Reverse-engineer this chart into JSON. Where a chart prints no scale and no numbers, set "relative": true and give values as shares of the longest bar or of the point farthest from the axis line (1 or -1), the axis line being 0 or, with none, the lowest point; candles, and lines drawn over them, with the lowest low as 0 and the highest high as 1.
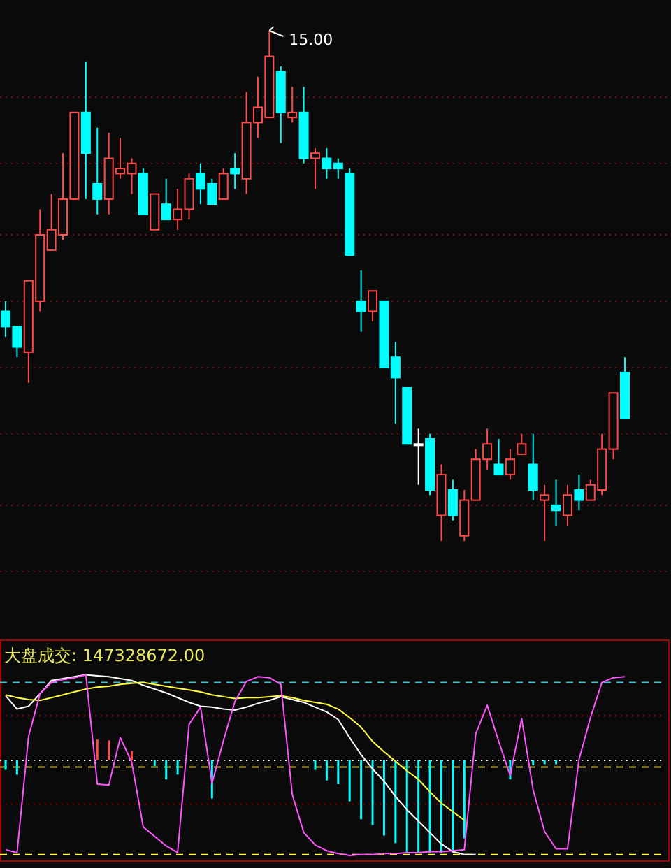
{
  "chart_data": [
    {
      "type": "candlestick",
      "relative": true,
      "ref_lines": [
        {
          "axis": "y",
          "value": 0.87,
          "color": "#6a1010",
          "line_style": "dotted"
        },
        {
          "axis": "y",
          "value": 0.74,
          "color": "#6a1010",
          "line_style": "dotted"
        },
        {
          "axis": "y",
          "value": 0.6,
          "color": "#6a1010",
          "line_style": "dotted"
        },
        {
          "axis": "y",
          "value": 0.47,
          "color": "#6a1010",
          "line_style": "dotted"
        },
        {
          "axis": "y",
          "value": 0.34,
          "color": "#6a1010",
          "line_style": "dotted"
        },
        {
          "axis": "y",
          "value": 0.21,
          "color": "#6a1010",
          "line_style": "dotted"
        },
        {
          "axis": "y",
          "value": 0.07,
          "color": "#6a1010",
          "line_style": "dotted"
        },
        {
          "axis": "y",
          "value": -0.06,
          "color": "#6a1010",
          "line_style": "dotted"
        }
      ],
      "categories": [
        null,
        null,
        null,
        null,
        null,
        null,
        null,
        null,
        null,
        null,
        null,
        null,
        null,
        null,
        null,
        null,
        null,
        null,
        null,
        null,
        null,
        null,
        null,
        null,
        null,
        null,
        null,
        null,
        null,
        null,
        null,
        null,
        null,
        null,
        null,
        null,
        null,
        null,
        null,
        null,
        null,
        null,
        null,
        null,
        null,
        null,
        null,
        null,
        null,
        null,
        null,
        null,
        null,
        null,
        null
      ],
      "ohlc": [
        [
          0.45,
          0.47,
          0.4,
          0.42
        ],
        [
          0.42,
          0.42,
          0.36,
          0.38
        ],
        [
          0.37,
          0.51,
          0.31,
          0.51
        ],
        [
          0.47,
          0.65,
          0.45,
          0.6
        ],
        [
          0.57,
          0.68,
          0.57,
          0.61
        ],
        [
          0.6,
          0.76,
          0.59,
          0.67
        ],
        [
          0.67,
          0.84,
          0.67,
          0.84
        ],
        [
          0.84,
          0.94,
          0.67,
          0.76
        ],
        [
          0.7,
          0.81,
          0.64,
          0.67
        ],
        [
          0.67,
          0.8,
          0.64,
          0.75
        ],
        [
          0.72,
          0.79,
          0.71,
          0.73
        ],
        [
          0.72,
          0.75,
          0.68,
          0.74
        ],
        [
          0.72,
          0.73,
          0.64,
          0.64
        ],
        [
          0.61,
          0.68,
          0.61,
          0.68
        ],
        [
          0.66,
          0.71,
          0.63,
          0.63
        ],
        [
          0.63,
          0.69,
          0.61,
          0.65
        ],
        [
          0.65,
          0.72,
          0.63,
          0.71
        ],
        [
          0.72,
          0.74,
          0.66,
          0.69
        ],
        [
          0.7,
          0.71,
          0.66,
          0.66
        ],
        [
          0.67,
          0.73,
          0.67,
          0.72
        ],
        [
          0.73,
          0.76,
          0.69,
          0.72
        ],
        [
          0.71,
          0.88,
          0.68,
          0.82
        ],
        [
          0.82,
          0.91,
          0.79,
          0.85
        ],
        [
          0.83,
          1,
          0.83,
          0.95
        ],
        [
          0.92,
          0.93,
          0.78,
          0.84
        ],
        [
          0.83,
          0.89,
          0.82,
          0.84
        ],
        [
          0.84,
          0.89,
          0.74,
          0.75
        ],
        [
          0.75,
          0.77,
          0.69,
          0.76
        ],
        [
          0.75,
          0.77,
          0.71,
          0.73
        ],
        [
          0.74,
          0.75,
          0.71,
          0.73
        ],
        [
          0.72,
          0.73,
          0.56,
          0.56
        ],
        [
          0.47,
          0.53,
          0.41,
          0.45
        ],
        [
          0.45,
          0.49,
          0.43,
          0.49
        ],
        [
          0.47,
          0.47,
          0.34,
          0.34
        ],
        [
          0.36,
          0.39,
          0.23,
          0.32
        ],
        [
          0.3,
          0.3,
          0.19,
          0.19
        ],
        [
          0.19,
          0.22,
          0.11,
          0.19
        ],
        [
          0.2,
          0.21,
          0.09,
          0.1
        ],
        [
          0.05,
          0.15,
          0,
          0.13
        ],
        [
          0.1,
          0.12,
          0.04,
          0.05
        ],
        [
          0.01,
          0.1,
          0,
          0.08
        ],
        [
          0.08,
          0.18,
          0.08,
          0.16
        ],
        [
          0.16,
          0.22,
          0.14,
          0.19
        ],
        [
          0.15,
          0.2,
          0.13,
          0.13
        ],
        [
          0.13,
          0.18,
          0.12,
          0.16
        ],
        [
          0.17,
          0.21,
          0.17,
          0.19
        ],
        [
          0.15,
          0.21,
          0.08,
          0.1
        ],
        [
          0.08,
          0.11,
          0,
          0.09
        ],
        [
          0.07,
          0.12,
          0.03,
          0.06
        ],
        [
          0.05,
          0.11,
          0.03,
          0.09
        ],
        [
          0.1,
          0.13,
          0.06,
          0.08
        ],
        [
          0.08,
          0.12,
          0.08,
          0.11
        ],
        [
          0.1,
          0.21,
          0.09,
          0.18
        ],
        [
          0.18,
          0.29,
          0.16,
          0.29
        ],
        [
          0.33,
          0.36,
          0.24,
          0.24
        ]
      ],
      "colors": [
        "#00ffff",
        "#00ffff",
        "#ff4a4a",
        "#ff4a4a",
        "#ff4a4a",
        "#ff4a4a",
        "#ff4a4a",
        "#00ffff",
        "#00ffff",
        "#ff4a4a",
        "#ff4a4a",
        "#ff4a4a",
        "#00ffff",
        "#ff4a4a",
        "#00ffff",
        "#ff4a4a",
        "#ff4a4a",
        "#00ffff",
        "#00ffff",
        "#ff4a4a",
        "#00ffff",
        "#ff4a4a",
        "#ff4a4a",
        "#ff4a4a",
        "#00ffff",
        "#ff4a4a",
        "#00ffff",
        "#ff4a4a",
        "#00ffff",
        "#00ffff",
        "#00ffff",
        "#00ffff",
        "#ff4a4a",
        "#00ffff",
        "#00ffff",
        "#00ffff",
        "#ffffff",
        "#00ffff",
        "#ff4a4a",
        "#00ffff",
        "#ff4a4a",
        "#ff4a4a",
        "#ff4a4a",
        "#00ffff",
        "#ff4a4a",
        "#ff4a4a",
        "#00ffff",
        "#ff4a4a",
        "#00ffff",
        "#ff4a4a",
        "#00ffff",
        "#ff4a4a",
        "#ff4a4a",
        "#ff4a4a",
        "#00ffff"
      ],
      "annotations": [
        "15.00"
      ]
    },
    {
      "type": "line",
      "relative": true,
      "title": "大盘成交: 147328672.00",
      "categories": [
        null,
        null,
        null,
        null,
        null,
        null,
        null,
        null,
        null,
        null,
        null,
        null,
        null,
        null,
        null,
        null,
        null,
        null,
        null,
        null,
        null,
        null,
        null,
        null,
        null,
        null,
        null,
        null,
        null,
        null,
        null,
        null,
        null,
        null,
        null,
        null,
        null,
        null,
        null,
        null,
        null,
        null,
        null,
        null,
        null,
        null,
        null,
        null,
        null,
        null,
        null,
        null,
        null,
        null,
        null
      ],
      "series": [
        {
          "type": "bar",
          "values": [
            -0.1,
            -0.15,
            null,
            null,
            null,
            null,
            null,
            null,
            0.22,
            0.21,
            null,
            0.1,
            null,
            -0.06,
            -0.2,
            -0.15,
            null,
            null,
            -0.4,
            null,
            null,
            null,
            null,
            null,
            null,
            null,
            null,
            -0.1,
            -0.21,
            -0.25,
            -0.43,
            -0.62,
            -0.68,
            -0.79,
            -0.87,
            -0.97,
            -0.97,
            -0.97,
            -0.97,
            -0.97,
            -0.82,
            null,
            null,
            null,
            -0.2,
            null,
            -0.05,
            -0.04,
            -0.04,
            null,
            null,
            null,
            null,
            null,
            null
          ],
          "colors": [
            "#00ffff",
            "#00ffff",
            null,
            null,
            null,
            null,
            null,
            null,
            "#ff4a4a",
            "#ff4a4a",
            null,
            "#ff4a4a",
            null,
            "#00ffff",
            "#00ffff",
            "#00ffff",
            null,
            null,
            "#00ffff",
            null,
            null,
            null,
            null,
            null,
            null,
            null,
            null,
            "#00ffff",
            "#00ffff",
            "#00ffff",
            "#00ffff",
            "#00ffff",
            "#00ffff",
            "#00ffff",
            "#00ffff",
            "#00ffff",
            "#00ffff",
            "#00ffff",
            "#00ffff",
            "#00ffff",
            "#00ffff",
            null,
            null,
            null,
            "#00ffff",
            null,
            "#00ffff",
            "#00ffff",
            "#00ffff",
            null,
            null,
            null,
            null,
            null,
            null
          ]
        },
        {
          "type": "line",
          "color": "#ffffff",
          "values": [
            0.68,
            0.54,
            0.57,
            0.7,
            0.84,
            0.86,
            0.88,
            0.9,
            0.89,
            0.88,
            0.86,
            0.84,
            0.79,
            0.75,
            0.71,
            0.66,
            0.61,
            0.57,
            0.56,
            0.54,
            0.53,
            0.56,
            0.6,
            0.63,
            0.67,
            0.64,
            0.61,
            0.56,
            0.51,
            0.43,
            0.24,
            0.06,
            -0.09,
            -0.22,
            -0.38,
            -0.52,
            -0.64,
            -0.76,
            -0.88,
            -0.96,
            -0.99,
            -0.99,
            null,
            null,
            null,
            null,
            null,
            null,
            null,
            null,
            null,
            null,
            null,
            null,
            null
          ]
        },
        {
          "type": "line",
          "color": "#ffff40",
          "values": [
            0.69,
            0.66,
            0.64,
            0.63,
            0.66,
            0.69,
            0.72,
            0.75,
            0.77,
            0.78,
            0.8,
            0.81,
            0.82,
            0.8,
            0.78,
            0.76,
            0.74,
            0.72,
            0.69,
            0.67,
            0.65,
            0.66,
            0.66,
            0.67,
            0.68,
            0.66,
            0.63,
            0.61,
            0.59,
            0.54,
            0.45,
            0.35,
            0.2,
            0.09,
            -0.01,
            -0.11,
            -0.2,
            -0.33,
            -0.45,
            -0.54,
            -0.63,
            null,
            null,
            null,
            null,
            null,
            null,
            null,
            null,
            null,
            null,
            null,
            null,
            null,
            null
          ]
        },
        {
          "type": "line",
          "color": "#ff55ff",
          "values": [
            -0.94,
            -0.97,
            0.25,
            0.7,
            0.82,
            0.85,
            0.87,
            0.9,
            -0.25,
            -0.26,
            0.24,
            -0.02,
            -0.7,
            -0.8,
            -0.9,
            -0.97,
            0.38,
            0.56,
            -0.24,
            0.21,
            0.62,
            0.83,
            0.88,
            0.87,
            0.8,
            -0.36,
            -0.76,
            -0.89,
            -0.95,
            -0.98,
            -1.0,
            -0.99,
            -0.99,
            -0.98,
            -0.98,
            -0.97,
            -0.97,
            -0.96,
            -0.96,
            -0.95,
            -0.94,
            0.28,
            0.58,
            0.2,
            -0.16,
            0.44,
            -0.31,
            -0.75,
            -0.93,
            -0.93,
            0.01,
            0.45,
            0.82,
            0.87,
            0.88
          ]
        }
      ],
      "ref_lines": [
        {
          "axis": "y",
          "value": 0.82,
          "color": "#40c0d0",
          "line_style": "dashed"
        },
        {
          "axis": "y",
          "value": 0.47,
          "color": "#800000",
          "line_style": "dotted"
        },
        {
          "axis": "y",
          "value": 0,
          "color": "#ffffff",
          "line_style": "dotted"
        },
        {
          "axis": "y",
          "value": -0.07,
          "color": "#c8c040",
          "line_style": "dashed"
        },
        {
          "axis": "y",
          "value": -0.46,
          "color": "#800000",
          "line_style": "dotted"
        },
        {
          "axis": "y",
          "value": -0.99,
          "color": "#ffff40",
          "line_style": "dashed"
        }
      ]
    }
  ]
}
